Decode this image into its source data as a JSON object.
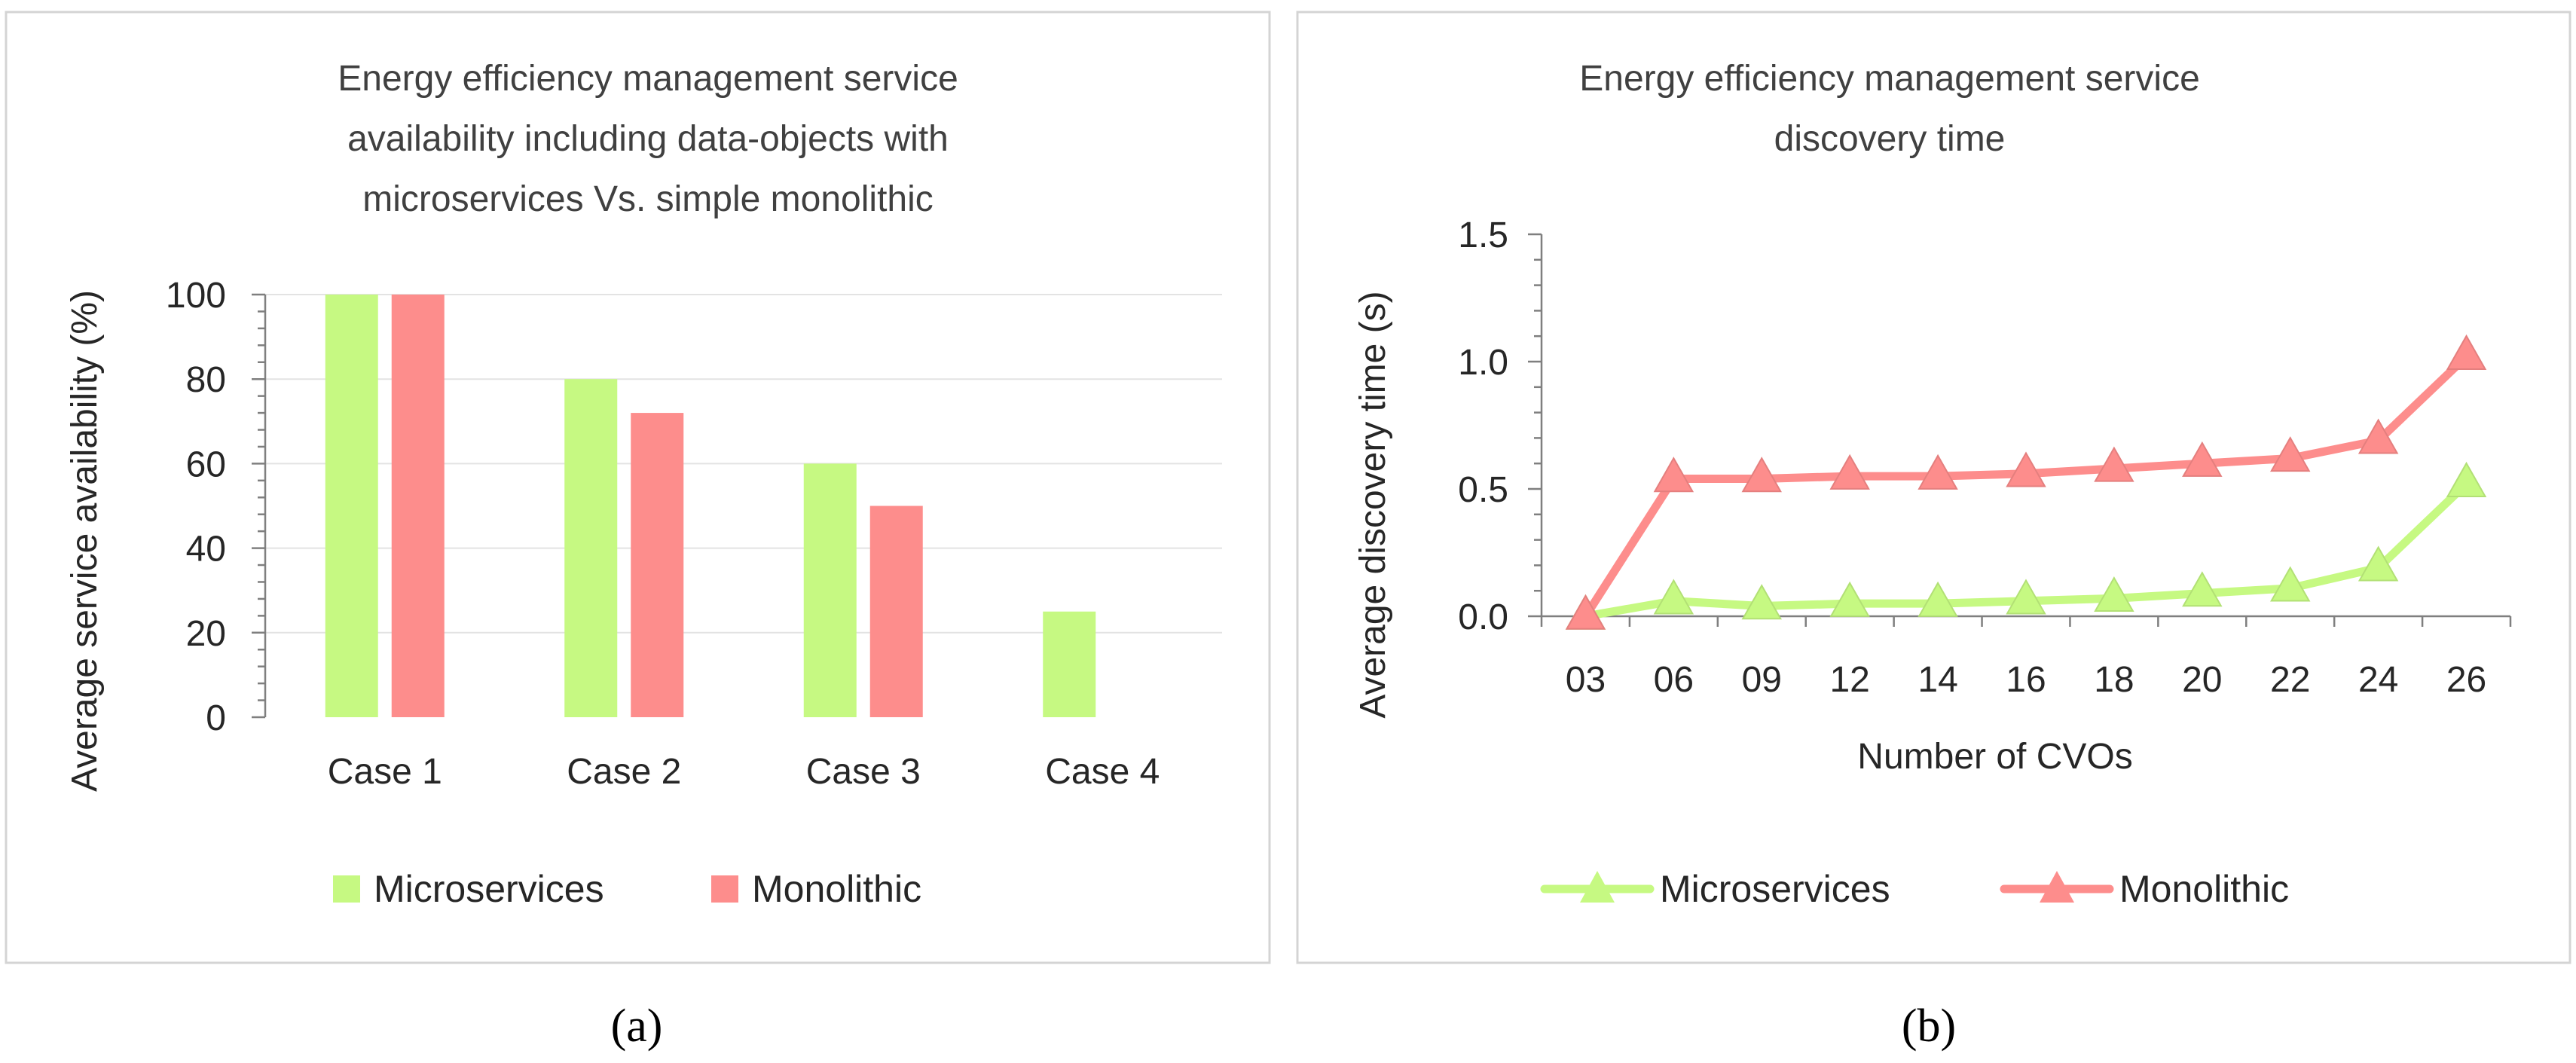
{
  "colors": {
    "microservices_bar": "#c6f982",
    "monolithic_bar": "#fd8d8c",
    "microservices_line": "#c6f982",
    "monolithic_line": "#fd8d8c"
  },
  "chart_data": [
    {
      "type": "bar",
      "title_lines": [
        "Energy efficiency management service",
        "availability including data-objects  with",
        "microservices Vs. simple monolithic"
      ],
      "xlabel": "",
      "ylabel": "Average service availability  (%)",
      "categories": [
        "Case 1",
        "Case 2",
        "Case 3",
        "Case 4"
      ],
      "series": [
        {
          "name": "Microservices",
          "values": [
            100,
            80,
            60,
            25
          ]
        },
        {
          "name": "Monolithic",
          "values": [
            100,
            72,
            50,
            0
          ]
        }
      ],
      "ylim": [
        0,
        100
      ],
      "yticks": [
        "0",
        "20",
        "40",
        "60",
        "80",
        "100"
      ],
      "grid": true,
      "legend": "bottom",
      "caption": "(a)"
    },
    {
      "type": "line",
      "title_lines": [
        "Energy efficiency management service",
        "discovery time"
      ],
      "xlabel": "Number of CVOs",
      "ylabel": "Average discovery time (s)",
      "categories": [
        "03",
        "06",
        "09",
        "12",
        "14",
        "16",
        "18",
        "20",
        "22",
        "24",
        "26"
      ],
      "series": [
        {
          "name": "Microservices",
          "marker": "triangle",
          "values": [
            0.0,
            0.06,
            0.04,
            0.05,
            0.05,
            0.06,
            0.07,
            0.09,
            0.11,
            0.19,
            0.52
          ]
        },
        {
          "name": "Monolithic",
          "marker": "triangle",
          "values": [
            0.0,
            0.54,
            0.54,
            0.55,
            0.55,
            0.56,
            0.58,
            0.6,
            0.62,
            0.69,
            1.02
          ]
        }
      ],
      "ylim": [
        0,
        1.5
      ],
      "yticks": [
        "0.0",
        "0.5",
        "1.0",
        "1.5"
      ],
      "grid": false,
      "legend": "bottom",
      "caption": "(b)"
    }
  ]
}
